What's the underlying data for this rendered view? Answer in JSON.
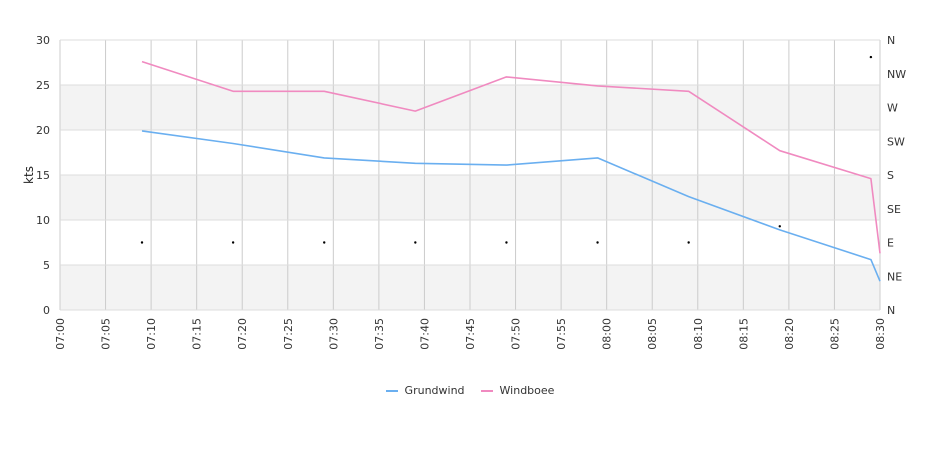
{
  "chart_data": {
    "type": "line",
    "x": [
      "07:00",
      "07:05",
      "07:10",
      "07:15",
      "07:20",
      "07:25",
      "07:30",
      "07:35",
      "07:40",
      "07:45",
      "07:50",
      "07:55",
      "08:00",
      "08:05",
      "08:10",
      "08:15",
      "08:20",
      "08:25",
      "08:30"
    ],
    "xlabel": "",
    "ylabel": "kts",
    "ylim": [
      0,
      30
    ],
    "yticks": [
      0,
      5,
      10,
      15,
      20,
      25,
      30
    ],
    "y2_ticks": [
      "N",
      "NE",
      "E",
      "SE",
      "S",
      "SW",
      "W",
      "NW",
      "N"
    ],
    "grid": true,
    "legend_position": "bottom",
    "series": [
      {
        "name": "Grundwind",
        "color": "#6aaff0",
        "points": [
          [
            "07:09",
            19.9
          ],
          [
            "07:19",
            18.5
          ],
          [
            "07:29",
            16.9
          ],
          [
            "07:39",
            16.3
          ],
          [
            "07:49",
            16.1
          ],
          [
            "07:59",
            16.9
          ],
          [
            "08:09",
            12.6
          ],
          [
            "08:19",
            8.9
          ],
          [
            "08:29",
            5.6
          ],
          [
            "08:30",
            3.2
          ]
        ]
      },
      {
        "name": "Windboee",
        "color": "#f08ac0",
        "points": [
          [
            "07:09",
            27.6
          ],
          [
            "07:19",
            24.3
          ],
          [
            "07:29",
            24.3
          ],
          [
            "07:39",
            22.1
          ],
          [
            "07:49",
            25.9
          ],
          [
            "07:59",
            24.9
          ],
          [
            "08:09",
            24.3
          ],
          [
            "08:19",
            17.7
          ],
          [
            "08:29",
            14.6
          ],
          [
            "08:30",
            6.3
          ]
        ]
      }
    ],
    "direction_markers": [
      {
        "time": "07:09",
        "direction_value": 7.5
      },
      {
        "time": "07:19",
        "direction_value": 7.5
      },
      {
        "time": "07:29",
        "direction_value": 7.5
      },
      {
        "time": "07:39",
        "direction_value": 7.5
      },
      {
        "time": "07:49",
        "direction_value": 7.5
      },
      {
        "time": "07:59",
        "direction_value": 7.5
      },
      {
        "time": "08:09",
        "direction_value": 7.5
      },
      {
        "time": "08:19",
        "direction_value": 9.3
      },
      {
        "time": "08:29",
        "direction_value": 28.1
      }
    ]
  }
}
